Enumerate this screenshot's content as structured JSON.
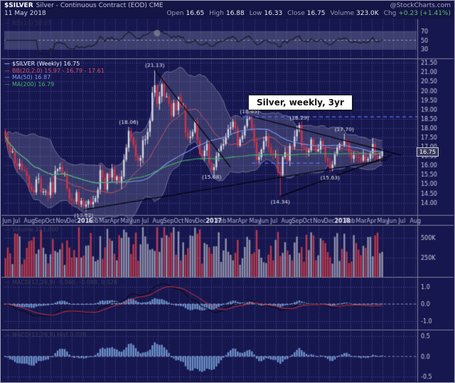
{
  "header": {
    "symbol": "$SILVER",
    "title_rest": "Silver - Continuous Contract (EOD) CME",
    "watermark": "@StockCharts.com",
    "date": "11 May 2018",
    "up_color": "#58c06c",
    "quote": [
      {
        "label": "Open",
        "value": "16.65"
      },
      {
        "label": "High",
        "value": "16.88"
      },
      {
        "label": "Low",
        "value": "16.33"
      },
      {
        "label": "Close",
        "value": "16.75"
      },
      {
        "label": "Volume",
        "value": "323.0K"
      },
      {
        "label": "Chg",
        "value": "+0.23 (+1.41%)",
        "accent": "up"
      }
    ]
  },
  "annotation_box": "Silver, weekly, 3yr",
  "legends": {
    "rsi": [
      {
        "text": "RSI(14) 50.67",
        "color": "#30304a"
      }
    ],
    "main": [
      {
        "text": "$SILVER (Weekly) 16.75",
        "color": "#f0f0f5"
      },
      {
        "text": "BB(20,2.0) 15.97 - 16.79 - 17.61",
        "color": "#d05060"
      },
      {
        "text": "MA(50) 16.87",
        "color": "#7f9bef"
      },
      {
        "text": "MA(200) 16.79",
        "color": "#46b468"
      }
    ],
    "volume": [
      {
        "text": "Volume 323,000",
        "color": "#3c3c58"
      }
    ],
    "macd": [
      {
        "text": "MACD(12,26,9) -0.060, -0.088, 0.028",
        "color": "#3c3c58"
      }
    ],
    "hist": [
      {
        "text": "MACD(12,26,9) Hist 0.028",
        "color": "#3c3c58"
      }
    ]
  },
  "axes": {
    "price_ticks": [
      21.5,
      21.0,
      20.5,
      20.0,
      19.5,
      19.0,
      18.5,
      18.0,
      17.5,
      17.0,
      16.5,
      16.0,
      15.5,
      15.0,
      14.5,
      14.0
    ],
    "price_range": [
      13.3,
      21.7
    ],
    "rsi_ticks": [
      70,
      50,
      30
    ],
    "volume_ticks": [
      "500K",
      "250K"
    ],
    "macd_ticks": [
      1.0,
      0.0,
      -1.0
    ],
    "hist_ticks": [
      0.5,
      0.0,
      -0.5
    ],
    "months": [
      "Jun",
      "Jul",
      "Aug",
      "Sep",
      "Oct",
      "Nov",
      "Dec",
      "2016",
      "Feb",
      "Mar",
      "Apr",
      "May",
      "Jun",
      "Jul",
      "Aug",
      "Sep",
      "Oct",
      "Nov",
      "Dec",
      "2017",
      "Feb",
      "Mar",
      "Apr",
      "May",
      "Jun",
      "Jul",
      "Aug",
      "Sep",
      "Oct",
      "Nov",
      "Dec",
      "2018",
      "Feb",
      "Mar",
      "Apr",
      "May",
      "Jun",
      "Jul",
      "Aug"
    ]
  },
  "chart_data": {
    "type": "candlestick",
    "title": "Silver, weekly, 3yr",
    "symbol": "$SILVER",
    "timeframe": "weekly",
    "x_start": "May 2015",
    "x_end": "May 2018",
    "ylim": [
      13.3,
      21.7
    ],
    "last_price_label": "16.75",
    "total_slots": 174,
    "closes": [
      17.55,
      17.05,
      16.7,
      16.75,
      16.1,
      15.95,
      16.1,
      15.75,
      15.7,
      15.45,
      14.85,
      14.7,
      14.55,
      15.25,
      15.3,
      14.55,
      14.6,
      14.6,
      14.4,
      15.1,
      14.55,
      15.7,
      15.8,
      15.9,
      15.55,
      15.55,
      14.75,
      14.2,
      14.1,
      14.05,
      14.55,
      13.9,
      14.1,
      13.8,
      13.9,
      14.1,
      13.9,
      14.05,
      14.25,
      14.7,
      15.75,
      15.35,
      14.7,
      15.55,
      15.35,
      15.8,
      15.2,
      15.4,
      15.05,
      15.4,
      16.3,
      16.95,
      17.85,
      17.5,
      17.1,
      16.5,
      16.25,
      16.4,
      17.35,
      17.4,
      17.8,
      18.4,
      19.9,
      20.3,
      19.3,
      19.7,
      20.35,
      19.7,
      19.7,
      19.3,
      18.65,
      19.35,
      18.95,
      19.65,
      19.15,
      19.2,
      17.75,
      17.45,
      17.55,
      17.8,
      18.35,
      17.35,
      16.6,
      16.5,
      16.8,
      17.15,
      16.1,
      15.75,
      15.9,
      16.5,
      16.8,
      17.05,
      17.15,
      17.5,
      17.95,
      18.05,
      18.35,
      17.95,
      17.05,
      17.4,
      17.6,
      18.1,
      18.5,
      18.55,
      17.9,
      17.25,
      16.3,
      16.45,
      16.85,
      17.3,
      17.55,
      16.95,
      16.65,
      16.6,
      16.6,
      15.65,
      15.5,
      16.45,
      16.7,
      16.25,
      17.05,
      17.0,
      17.55,
      17.9,
      18.15,
      17.0,
      16.95,
      16.7,
      16.8,
      17.4,
      17.0,
      16.75,
      16.85,
      17.3,
      17.0,
      16.4,
      16.2,
      15.8,
      16.05,
      16.6,
      16.95,
      17.15,
      17.05,
      17.35,
      17.2,
      16.7,
      16.35,
      16.55,
      16.5,
      16.4,
      16.25,
      16.55,
      16.25,
      16.35,
      16.65,
      17.15,
      16.5,
      16.35,
      16.5,
      16.75
    ],
    "wick_overrides": {
      "33": {
        "low": 13.62
      },
      "52": {
        "high": 18.06
      },
      "63": {
        "high": 21.13
      },
      "87": {
        "low": 15.68
      },
      "103": {
        "high": 18.65
      },
      "116": {
        "low": 14.34
      },
      "124": {
        "high": 18.29
      },
      "137": {
        "low": 15.63
      },
      "143": {
        "high": 17.7
      },
      "159": {
        "high": 16.88,
        "low": 16.33
      }
    },
    "annotations": [
      {
        "week": 33,
        "price": 13.62,
        "text": "(13.62)",
        "pos": "below"
      },
      {
        "week": 52,
        "price": 18.06,
        "text": "(18.06)",
        "pos": "above"
      },
      {
        "week": 63,
        "price": 21.13,
        "text": "(21.13)",
        "pos": "above"
      },
      {
        "week": 87,
        "price": 15.68,
        "text": "(15.68)",
        "pos": "below"
      },
      {
        "week": 103,
        "price": 18.65,
        "text": "(18.65)",
        "pos": "above"
      },
      {
        "week": 116,
        "price": 14.34,
        "text": "(14.34)",
        "pos": "below"
      },
      {
        "week": 124,
        "price": 18.29,
        "text": "(18.29)",
        "pos": "above"
      },
      {
        "week": 137,
        "price": 15.63,
        "text": "(15.63)",
        "pos": "below"
      },
      {
        "week": 143,
        "price": 17.7,
        "text": "(17.70)",
        "pos": "above"
      }
    ],
    "trendlines": [
      {
        "w1": 63,
        "p1": 21.13,
        "w2": 95,
        "p2": 15.9
      },
      {
        "w1": 103,
        "p1": 18.65,
        "w2": 167,
        "p2": 16.55
      },
      {
        "w1": 33,
        "p1": 13.62,
        "w2": 161,
        "p2": 16.3
      },
      {
        "w1": 116,
        "p1": 14.34,
        "w2": 163,
        "p2": 16.55
      }
    ],
    "hlines": [
      {
        "price": 18.6,
        "w1": 100,
        "w2": 174
      },
      {
        "price": 16.12,
        "w1": 104,
        "w2": 134
      }
    ],
    "rsi_marker_week": 64,
    "volume_current_k": 323,
    "indicators": {
      "rsi_period": 14,
      "bb": "20,2.0",
      "ma": [
        50,
        200
      ],
      "macd": "12,26,9"
    },
    "colors": {
      "bg": "#17174f",
      "grid": "rgba(122,122,220,0.5)",
      "up": "#d6d6e4",
      "down": "#d03448",
      "volUp": "#9191ab",
      "volDown": "#bb3a4c",
      "ma50": "#7f9bef",
      "ma200": "#46b468",
      "bbMid": "#c95a68",
      "rsi": "#191927",
      "histBar": "#6d93cc",
      "macdLine": "#0d0d1a",
      "signal": "#cc3344",
      "trend": "#05050d",
      "dashedBlue": "#5577ff"
    }
  }
}
